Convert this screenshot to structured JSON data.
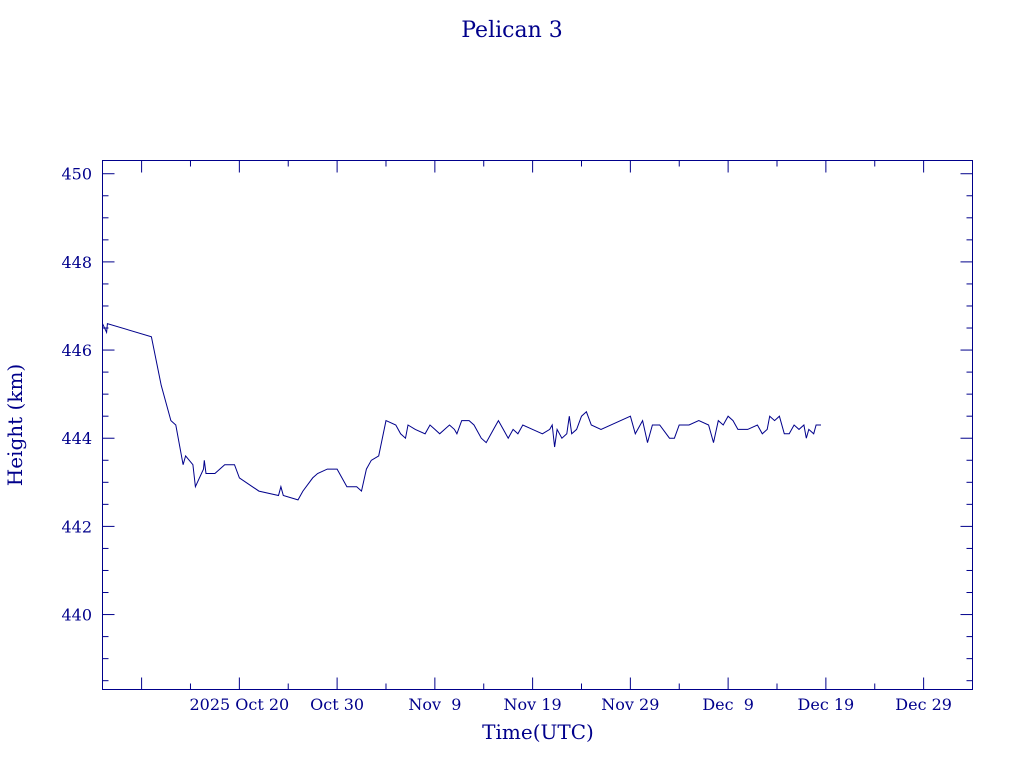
{
  "chart_data": {
    "type": "line",
    "title": "Pelican 3",
    "xlabel": "Time(UTC)",
    "ylabel": "Height (km)",
    "xlim": [
      "2025-10-06",
      "2026-01-03"
    ],
    "ylim": [
      438.3,
      450.3
    ],
    "grid": false,
    "x_ticks": [
      {
        "date": "2025-10-20",
        "label": "2025 Oct 20"
      },
      {
        "date": "2025-10-30",
        "label": "Oct 30"
      },
      {
        "date": "2025-11-09",
        "label": "Nov  9"
      },
      {
        "date": "2025-11-19",
        "label": "Nov 19"
      },
      {
        "date": "2025-11-29",
        "label": "Nov 29"
      },
      {
        "date": "2025-12-09",
        "label": "Dec  9"
      },
      {
        "date": "2025-12-19",
        "label": "Dec 19"
      },
      {
        "date": "2025-12-29",
        "label": "Dec 29"
      }
    ],
    "y_ticks": [
      440,
      442,
      444,
      446,
      448,
      450
    ],
    "series": [
      {
        "color": "#00008b",
        "points": [
          [
            "2025-10-06T00:00",
            446.6
          ],
          [
            "2025-10-06T10:00",
            446.4
          ],
          [
            "2025-10-06T12:00",
            446.6
          ],
          [
            "2025-10-11T00:00",
            446.3
          ],
          [
            "2025-10-12T00:00",
            445.2
          ],
          [
            "2025-10-13T00:00",
            444.4
          ],
          [
            "2025-10-13T12:00",
            444.3
          ],
          [
            "2025-10-14T06:00",
            443.4
          ],
          [
            "2025-10-14T12:00",
            443.6
          ],
          [
            "2025-10-15T06:00",
            443.4
          ],
          [
            "2025-10-15T12:00",
            442.9
          ],
          [
            "2025-10-16T08:00",
            443.3
          ],
          [
            "2025-10-16T10:00",
            443.5
          ],
          [
            "2025-10-16T14:00",
            443.2
          ],
          [
            "2025-10-17T12:00",
            443.2
          ],
          [
            "2025-10-18T12:00",
            443.4
          ],
          [
            "2025-10-19T12:00",
            443.4
          ],
          [
            "2025-10-20T00:00",
            443.1
          ],
          [
            "2025-10-22T00:00",
            442.8
          ],
          [
            "2025-10-24T00:00",
            442.7
          ],
          [
            "2025-10-24T06:00",
            442.9
          ],
          [
            "2025-10-24T12:00",
            442.7
          ],
          [
            "2025-10-26T00:00",
            442.6
          ],
          [
            "2025-10-26T12:00",
            442.8
          ],
          [
            "2025-10-27T12:00",
            443.1
          ],
          [
            "2025-10-28T00:00",
            443.2
          ],
          [
            "2025-10-29T00:00",
            443.3
          ],
          [
            "2025-10-30T00:00",
            443.3
          ],
          [
            "2025-10-31T00:00",
            442.9
          ],
          [
            "2025-11-01T00:00",
            442.9
          ],
          [
            "2025-11-01T12:00",
            442.8
          ],
          [
            "2025-11-02T00:00",
            443.3
          ],
          [
            "2025-11-02T12:00",
            443.5
          ],
          [
            "2025-11-03T06:00",
            443.6
          ],
          [
            "2025-11-04T00:00",
            444.4
          ],
          [
            "2025-11-05T00:00",
            444.3
          ],
          [
            "2025-11-05T12:00",
            444.1
          ],
          [
            "2025-11-06T00:00",
            444.0
          ],
          [
            "2025-11-06T06:00",
            444.3
          ],
          [
            "2025-11-07T00:00",
            444.2
          ],
          [
            "2025-11-08T00:00",
            444.1
          ],
          [
            "2025-11-08T12:00",
            444.3
          ],
          [
            "2025-11-09T00:00",
            444.2
          ],
          [
            "2025-11-09T12:00",
            444.1
          ],
          [
            "2025-11-10T00:00",
            444.2
          ],
          [
            "2025-11-10T12:00",
            444.3
          ],
          [
            "2025-11-11T00:00",
            444.2
          ],
          [
            "2025-11-11T06:00",
            444.1
          ],
          [
            "2025-11-11T18:00",
            444.4
          ],
          [
            "2025-11-12T12:00",
            444.4
          ],
          [
            "2025-11-13T00:00",
            444.3
          ],
          [
            "2025-11-13T18:00",
            444.0
          ],
          [
            "2025-11-14T06:00",
            443.9
          ],
          [
            "2025-11-15T00:00",
            444.2
          ],
          [
            "2025-11-15T12:00",
            444.4
          ],
          [
            "2025-11-16T00:00",
            444.2
          ],
          [
            "2025-11-16T12:00",
            444.0
          ],
          [
            "2025-11-17T00:00",
            444.2
          ],
          [
            "2025-11-17T12:00",
            444.1
          ],
          [
            "2025-11-18T00:00",
            444.3
          ],
          [
            "2025-11-19T00:00",
            444.2
          ],
          [
            "2025-11-20T00:00",
            444.1
          ],
          [
            "2025-11-20T18:00",
            444.2
          ],
          [
            "2025-11-21T00:00",
            444.3
          ],
          [
            "2025-11-21T06:00",
            443.8
          ],
          [
            "2025-11-21T12:00",
            444.2
          ],
          [
            "2025-11-22T00:00",
            444.0
          ],
          [
            "2025-11-22T12:00",
            444.1
          ],
          [
            "2025-11-22T18:00",
            444.5
          ],
          [
            "2025-11-23T00:00",
            444.1
          ],
          [
            "2025-11-23T12:00",
            444.2
          ],
          [
            "2025-11-24T00:00",
            444.5
          ],
          [
            "2025-11-24T12:00",
            444.6
          ],
          [
            "2025-11-25T00:00",
            444.3
          ],
          [
            "2025-11-26T00:00",
            444.2
          ],
          [
            "2025-11-29T00:00",
            444.5
          ],
          [
            "2025-11-29T12:00",
            444.1
          ],
          [
            "2025-11-30T06:00",
            444.4
          ],
          [
            "2025-11-30T18:00",
            443.9
          ],
          [
            "2025-12-01T06:00",
            444.3
          ],
          [
            "2025-12-02T00:00",
            444.3
          ],
          [
            "2025-12-03T00:00",
            444.0
          ],
          [
            "2025-12-03T12:00",
            444.0
          ],
          [
            "2025-12-04T00:00",
            444.3
          ],
          [
            "2025-12-05T00:00",
            444.3
          ],
          [
            "2025-12-06T00:00",
            444.4
          ],
          [
            "2025-12-07T00:00",
            444.3
          ],
          [
            "2025-12-07T12:00",
            443.9
          ],
          [
            "2025-12-08T00:00",
            444.4
          ],
          [
            "2025-12-08T12:00",
            444.3
          ],
          [
            "2025-12-09T00:00",
            444.5
          ],
          [
            "2025-12-09T12:00",
            444.4
          ],
          [
            "2025-12-10T00:00",
            444.2
          ],
          [
            "2025-12-11T00:00",
            444.2
          ],
          [
            "2025-12-12T00:00",
            444.3
          ],
          [
            "2025-12-12T12:00",
            444.1
          ],
          [
            "2025-12-13T00:00",
            444.2
          ],
          [
            "2025-12-13T06:00",
            444.5
          ],
          [
            "2025-12-13T18:00",
            444.4
          ],
          [
            "2025-12-14T06:00",
            444.5
          ],
          [
            "2025-12-14T18:00",
            444.1
          ],
          [
            "2025-12-15T06:00",
            444.1
          ],
          [
            "2025-12-15T18:00",
            444.3
          ],
          [
            "2025-12-16T06:00",
            444.2
          ],
          [
            "2025-12-16T18:00",
            444.3
          ],
          [
            "2025-12-17T00:00",
            444.0
          ],
          [
            "2025-12-17T06:00",
            444.2
          ],
          [
            "2025-12-17T18:00",
            444.1
          ],
          [
            "2025-12-18T00:00",
            444.3
          ],
          [
            "2025-12-18T12:00",
            444.3
          ]
        ]
      }
    ]
  }
}
